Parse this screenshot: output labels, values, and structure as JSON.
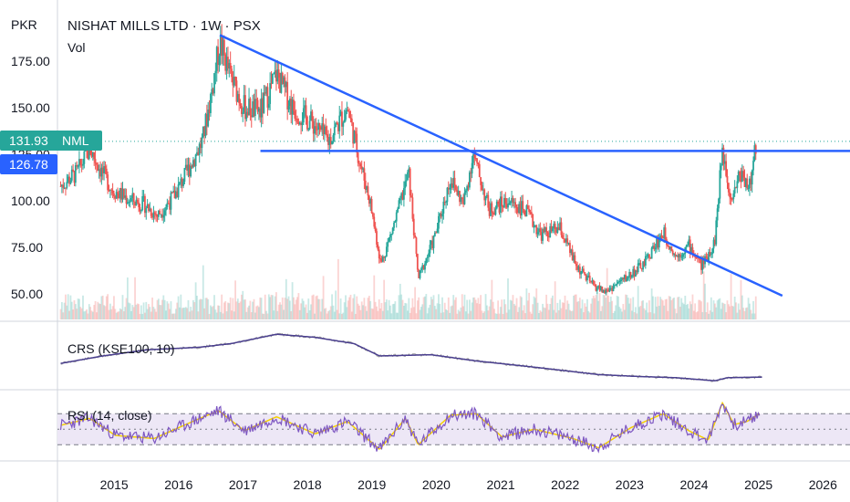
{
  "header": {
    "currency": "PKR",
    "title": "NISHAT MILLS LTD · 1W · PSX",
    "volume_label": "Vol"
  },
  "badges": {
    "last_price": "131.93",
    "last_symbol": "NML",
    "level_price": "126.78",
    "last_color": "#26a69a",
    "level_color": "#2962ff"
  },
  "indicators": {
    "crs_label": "CRS (KSE100, 10)",
    "rsi_label": "RSI (14, close)"
  },
  "colors": {
    "up": "#26a69a",
    "down": "#ef5350",
    "trendline": "#2962ff",
    "crs_line": "#4a3f8f",
    "rsi_line": "#7e57c2",
    "rsi_ma": "#f5d000",
    "rsi_band": "#ede7f6"
  },
  "chart_data": [
    {
      "type": "candlestick",
      "yticks": [
        "175.00",
        "150.00",
        "125.00",
        "100.00",
        "75.00",
        "50.00"
      ],
      "ytick_values": [
        175,
        150,
        125,
        100,
        75,
        50
      ],
      "xticks": [
        "2015",
        "2016",
        "2017",
        "2018",
        "2019",
        "2020",
        "2021",
        "2022",
        "2023",
        "2024",
        "2025",
        "2026"
      ],
      "x_range": [
        2014.6,
        2026.9
      ],
      "y_range": [
        37,
        197
      ],
      "close_path": [
        {
          "x": 2014.65,
          "y": 108
        },
        {
          "x": 2014.9,
          "y": 115
        },
        {
          "x": 2015.1,
          "y": 128
        },
        {
          "x": 2015.25,
          "y": 118
        },
        {
          "x": 2015.45,
          "y": 106
        },
        {
          "x": 2015.7,
          "y": 101
        },
        {
          "x": 2015.95,
          "y": 98
        },
        {
          "x": 2016.15,
          "y": 92
        },
        {
          "x": 2016.4,
          "y": 102
        },
        {
          "x": 2016.65,
          "y": 118
        },
        {
          "x": 2016.85,
          "y": 132
        },
        {
          "x": 2017.0,
          "y": 160
        },
        {
          "x": 2017.12,
          "y": 185
        },
        {
          "x": 2017.3,
          "y": 165
        },
        {
          "x": 2017.5,
          "y": 150
        },
        {
          "x": 2017.75,
          "y": 148
        },
        {
          "x": 2018.0,
          "y": 168
        },
        {
          "x": 2018.25,
          "y": 150
        },
        {
          "x": 2018.55,
          "y": 142
        },
        {
          "x": 2018.8,
          "y": 132
        },
        {
          "x": 2019.1,
          "y": 150
        },
        {
          "x": 2019.3,
          "y": 120
        },
        {
          "x": 2019.45,
          "y": 100
        },
        {
          "x": 2019.62,
          "y": 66
        },
        {
          "x": 2019.85,
          "y": 90
        },
        {
          "x": 2020.05,
          "y": 115
        },
        {
          "x": 2020.2,
          "y": 58
        },
        {
          "x": 2020.45,
          "y": 80
        },
        {
          "x": 2020.7,
          "y": 112
        },
        {
          "x": 2020.9,
          "y": 98
        },
        {
          "x": 2021.05,
          "y": 125
        },
        {
          "x": 2021.3,
          "y": 95
        },
        {
          "x": 2021.6,
          "y": 100
        },
        {
          "x": 2021.85,
          "y": 95
        },
        {
          "x": 2022.1,
          "y": 82
        },
        {
          "x": 2022.4,
          "y": 85
        },
        {
          "x": 2022.65,
          "y": 65
        },
        {
          "x": 2022.9,
          "y": 55
        },
        {
          "x": 2023.1,
          "y": 51
        },
        {
          "x": 2023.4,
          "y": 58
        },
        {
          "x": 2023.7,
          "y": 66
        },
        {
          "x": 2024.0,
          "y": 83
        },
        {
          "x": 2024.2,
          "y": 70
        },
        {
          "x": 2024.4,
          "y": 76
        },
        {
          "x": 2024.6,
          "y": 65
        },
        {
          "x": 2024.8,
          "y": 78
        },
        {
          "x": 2024.92,
          "y": 128
        },
        {
          "x": 2025.05,
          "y": 102
        },
        {
          "x": 2025.2,
          "y": 115
        },
        {
          "x": 2025.35,
          "y": 108
        },
        {
          "x": 2025.45,
          "y": 132
        }
      ],
      "horizontal_level": {
        "value": 126.78,
        "x_start": 2017.75,
        "x_end": 2026.9
      },
      "trendline": {
        "x1": 2017.12,
        "y1": 189,
        "x2": 2025.85,
        "y2": 49
      },
      "last_close": 131.93
    },
    {
      "type": "line",
      "name": "CRS (KSE100, 10)",
      "points": [
        {
          "x": 2014.65,
          "y": 0.62
        },
        {
          "x": 2015.3,
          "y": 0.5
        },
        {
          "x": 2016.0,
          "y": 0.4
        },
        {
          "x": 2016.8,
          "y": 0.36
        },
        {
          "x": 2017.3,
          "y": 0.3
        },
        {
          "x": 2018.0,
          "y": 0.15
        },
        {
          "x": 2018.6,
          "y": 0.2
        },
        {
          "x": 2019.2,
          "y": 0.3
        },
        {
          "x": 2019.6,
          "y": 0.5
        },
        {
          "x": 2020.4,
          "y": 0.48
        },
        {
          "x": 2021.1,
          "y": 0.58
        },
        {
          "x": 2022.0,
          "y": 0.68
        },
        {
          "x": 2023.0,
          "y": 0.8
        },
        {
          "x": 2023.6,
          "y": 0.83
        },
        {
          "x": 2024.2,
          "y": 0.85
        },
        {
          "x": 2024.8,
          "y": 0.9
        },
        {
          "x": 2025.0,
          "y": 0.85
        },
        {
          "x": 2025.55,
          "y": 0.84
        }
      ]
    },
    {
      "type": "line",
      "name": "RSI (14, close)",
      "bands": [
        70,
        50,
        30
      ],
      "y_range": [
        15,
        95
      ],
      "points": [
        {
          "x": 2014.65,
          "y": 55
        },
        {
          "x": 2015.1,
          "y": 64
        },
        {
          "x": 2015.5,
          "y": 42
        },
        {
          "x": 2016.1,
          "y": 38
        },
        {
          "x": 2016.7,
          "y": 60
        },
        {
          "x": 2017.1,
          "y": 74
        },
        {
          "x": 2017.5,
          "y": 48
        },
        {
          "x": 2018.0,
          "y": 66
        },
        {
          "x": 2018.6,
          "y": 44
        },
        {
          "x": 2019.1,
          "y": 60
        },
        {
          "x": 2019.6,
          "y": 24
        },
        {
          "x": 2020.0,
          "y": 64
        },
        {
          "x": 2020.2,
          "y": 30
        },
        {
          "x": 2020.7,
          "y": 68
        },
        {
          "x": 2021.1,
          "y": 70
        },
        {
          "x": 2021.5,
          "y": 40
        },
        {
          "x": 2022.0,
          "y": 50
        },
        {
          "x": 2022.6,
          "y": 38
        },
        {
          "x": 2023.0,
          "y": 26
        },
        {
          "x": 2023.5,
          "y": 52
        },
        {
          "x": 2024.0,
          "y": 70
        },
        {
          "x": 2024.4,
          "y": 48
        },
        {
          "x": 2024.7,
          "y": 36
        },
        {
          "x": 2024.92,
          "y": 84
        },
        {
          "x": 2025.1,
          "y": 56
        },
        {
          "x": 2025.3,
          "y": 60
        },
        {
          "x": 2025.5,
          "y": 70
        }
      ]
    }
  ]
}
